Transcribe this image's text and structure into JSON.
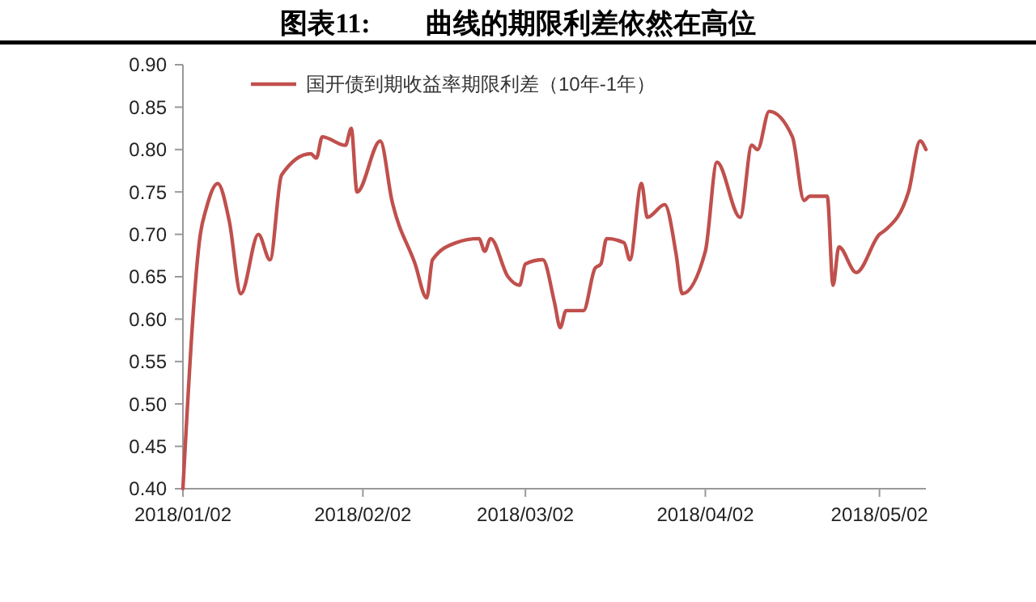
{
  "chart_data": {
    "type": "line",
    "title": "图表11:        曲线的期限利差依然在高位",
    "x": [
      "2018-01-02",
      "2018-01-05",
      "2018-01-06",
      "2018-01-08",
      "2018-01-10",
      "2018-01-12",
      "2018-01-15",
      "2018-01-17",
      "2018-01-19",
      "2018-01-24",
      "2018-01-25",
      "2018-01-26",
      "2018-01-30",
      "2018-01-31",
      "2018-02-01",
      "2018-02-05",
      "2018-02-07",
      "2018-02-11",
      "2018-02-13",
      "2018-02-14",
      "2018-02-18",
      "2018-02-22",
      "2018-02-23",
      "2018-02-24",
      "2018-02-27",
      "2018-03-01",
      "2018-03-02",
      "2018-03-05",
      "2018-03-07",
      "2018-03-08",
      "2018-03-09",
      "2018-03-12",
      "2018-03-14",
      "2018-03-15",
      "2018-03-16",
      "2018-03-19",
      "2018-03-20",
      "2018-03-22",
      "2018-03-23",
      "2018-03-26",
      "2018-03-28",
      "2018-03-29",
      "2018-04-02",
      "2018-04-04",
      "2018-04-08",
      "2018-04-10",
      "2018-04-11",
      "2018-04-13",
      "2018-04-17",
      "2018-04-19",
      "2018-04-20",
      "2018-04-23",
      "2018-04-24",
      "2018-04-25",
      "2018-04-28",
      "2018-05-02",
      "2018-05-03",
      "2018-05-07",
      "2018-05-09",
      "2018-05-10"
    ],
    "series": [
      {
        "name": "国开债到期收益率期限利差（10年-1年）",
        "color": "#c0504d",
        "values": [
          0.4,
          0.7,
          0.73,
          0.76,
          0.715,
          0.63,
          0.7,
          0.67,
          0.77,
          0.795,
          0.79,
          0.815,
          0.805,
          0.825,
          0.75,
          0.81,
          0.74,
          0.665,
          0.625,
          0.67,
          0.69,
          0.695,
          0.68,
          0.695,
          0.65,
          0.64,
          0.665,
          0.67,
          0.62,
          0.59,
          0.61,
          0.61,
          0.66,
          0.665,
          0.695,
          0.69,
          0.67,
          0.76,
          0.72,
          0.735,
          0.675,
          0.63,
          0.68,
          0.785,
          0.72,
          0.805,
          0.8,
          0.845,
          0.815,
          0.74,
          0.745,
          0.745,
          0.64,
          0.685,
          0.655,
          0.7,
          0.705,
          0.75,
          0.81,
          0.8
        ]
      }
    ],
    "xlim": [
      "2018-01-02",
      "2018-05-10"
    ],
    "xticks": [
      {
        "value": "2018-01-02",
        "label": "2018/01/02"
      },
      {
        "value": "2018-02-02",
        "label": "2018/02/02"
      },
      {
        "value": "2018-03-02",
        "label": "2018/03/02"
      },
      {
        "value": "2018-04-02",
        "label": "2018/04/02"
      },
      {
        "value": "2018-05-02",
        "label": "2018/05/02"
      }
    ],
    "ylim": [
      0.4,
      0.9
    ],
    "yticks": [
      {
        "value": 0.4,
        "label": "0.40"
      },
      {
        "value": 0.45,
        "label": "0.45"
      },
      {
        "value": 0.5,
        "label": "0.50"
      },
      {
        "value": 0.55,
        "label": "0.55"
      },
      {
        "value": 0.6,
        "label": "0.60"
      },
      {
        "value": 0.65,
        "label": "0.65"
      },
      {
        "value": 0.7,
        "label": "0.70"
      },
      {
        "value": 0.75,
        "label": "0.75"
      },
      {
        "value": 0.8,
        "label": "0.80"
      },
      {
        "value": 0.85,
        "label": "0.85"
      },
      {
        "value": 0.9,
        "label": "0.90"
      }
    ],
    "grid": false,
    "legend": "top",
    "marker": "none",
    "line_style": "solid"
  }
}
